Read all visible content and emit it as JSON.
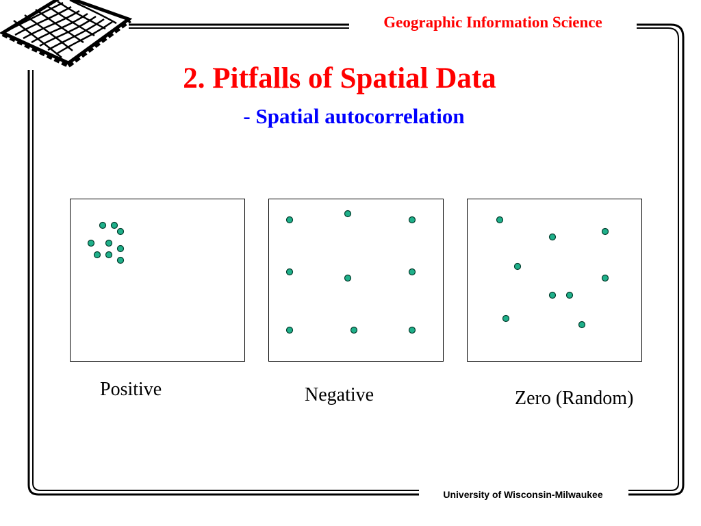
{
  "header": {
    "title": "Geographic Information Science",
    "logo_icon": "mesh-surface-logo-icon"
  },
  "slide": {
    "title": "2. Pitfalls of Spatial Data",
    "subtitle": "- Spatial autocorrelation"
  },
  "footer": {
    "text": "University of Wisconsin-Milwaukee"
  },
  "colors": {
    "title": "#ff0000",
    "subtitle": "#0000ff",
    "point_fill": "#1fb08a",
    "point_stroke": "#003a2a"
  },
  "panels": [
    {
      "label": "Positive",
      "points": [
        [
          47,
          38
        ],
        [
          64,
          38
        ],
        [
          73,
          47
        ],
        [
          30,
          64
        ],
        [
          56,
          64
        ],
        [
          73,
          72
        ],
        [
          39,
          81
        ],
        [
          56,
          81
        ],
        [
          73,
          89
        ]
      ]
    },
    {
      "label": "Negative",
      "points": [
        [
          30,
          30
        ],
        [
          115,
          21
        ],
        [
          209,
          30
        ],
        [
          30,
          106
        ],
        [
          115,
          115
        ],
        [
          209,
          106
        ],
        [
          30,
          191
        ],
        [
          124,
          191
        ],
        [
          209,
          191
        ]
      ]
    },
    {
      "label": "Zero (Random)",
      "points": [
        [
          47,
          30
        ],
        [
          124,
          55
        ],
        [
          201,
          47
        ],
        [
          73,
          98
        ],
        [
          201,
          115
        ],
        [
          124,
          140
        ],
        [
          149,
          140
        ],
        [
          56,
          174
        ],
        [
          167,
          183
        ]
      ]
    }
  ]
}
